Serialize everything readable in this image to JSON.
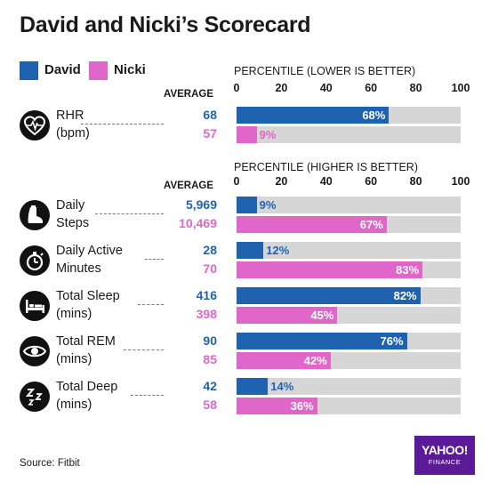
{
  "title": "David and Nicki’s Scorecard",
  "colors": {
    "david": "#1f63b0",
    "nicki": "#e066c9",
    "track": "#d6d6d6"
  },
  "legend": [
    {
      "name": "David",
      "color": "#1f63b0"
    },
    {
      "name": "Nicki",
      "color": "#e066c9"
    }
  ],
  "sections": [
    {
      "axis_title": "PERCENTILE",
      "axis_note": "(LOWER IS BETTER)",
      "avg_label": "AVERAGE",
      "ticks": [
        "0",
        "20",
        "40",
        "60",
        "80",
        "100"
      ]
    },
    {
      "axis_title": "PERCENTILE",
      "axis_note": "(HIGHER IS BETTER)",
      "avg_label": "AVERAGE",
      "ticks": [
        "0",
        "20",
        "40",
        "60",
        "80",
        "100"
      ]
    }
  ],
  "chart_data": {
    "type": "bar",
    "orientation": "horizontal",
    "xlim": [
      0,
      100
    ],
    "series_names": [
      "David",
      "Nicki"
    ],
    "metrics": [
      {
        "icon": "heart-pulse-icon",
        "label1": "RHR",
        "label2": "(bpm)",
        "section": 0,
        "david": {
          "average": "68",
          "percentile": 68,
          "pct_label": "68%"
        },
        "nicki": {
          "average": "57",
          "percentile": 9,
          "pct_label": "9%"
        }
      },
      {
        "icon": "footprint-icon",
        "label1": "Daily",
        "label2": "Steps",
        "section": 1,
        "david": {
          "average": "5,969",
          "percentile": 9,
          "pct_label": "9%"
        },
        "nicki": {
          "average": "10,469",
          "percentile": 67,
          "pct_label": "67%"
        }
      },
      {
        "icon": "stopwatch-icon",
        "label1": "Daily Active",
        "label2": "Minutes",
        "section": 1,
        "david": {
          "average": "28",
          "percentile": 12,
          "pct_label": "12%"
        },
        "nicki": {
          "average": "70",
          "percentile": 83,
          "pct_label": "83%"
        }
      },
      {
        "icon": "bed-icon",
        "label1": "Total Sleep",
        "label2": "(mins)",
        "section": 1,
        "david": {
          "average": "416",
          "percentile": 82,
          "pct_label": "82%"
        },
        "nicki": {
          "average": "398",
          "percentile": 45,
          "pct_label": "45%"
        }
      },
      {
        "icon": "eye-icon",
        "label1": "Total REM",
        "label2": "(mins)",
        "section": 1,
        "david": {
          "average": "90",
          "percentile": 76,
          "pct_label": "76%"
        },
        "nicki": {
          "average": "85",
          "percentile": 42,
          "pct_label": "42%"
        }
      },
      {
        "icon": "zzz-icon",
        "label1": "Total Deep",
        "label2": "(mins)",
        "section": 1,
        "david": {
          "average": "42",
          "percentile": 14,
          "pct_label": "14%"
        },
        "nicki": {
          "average": "58",
          "percentile": 36,
          "pct_label": "36%"
        }
      }
    ]
  },
  "source": "Source: Fitbit",
  "logo": {
    "line1": "YAHOO!",
    "line2": "FINANCE"
  }
}
